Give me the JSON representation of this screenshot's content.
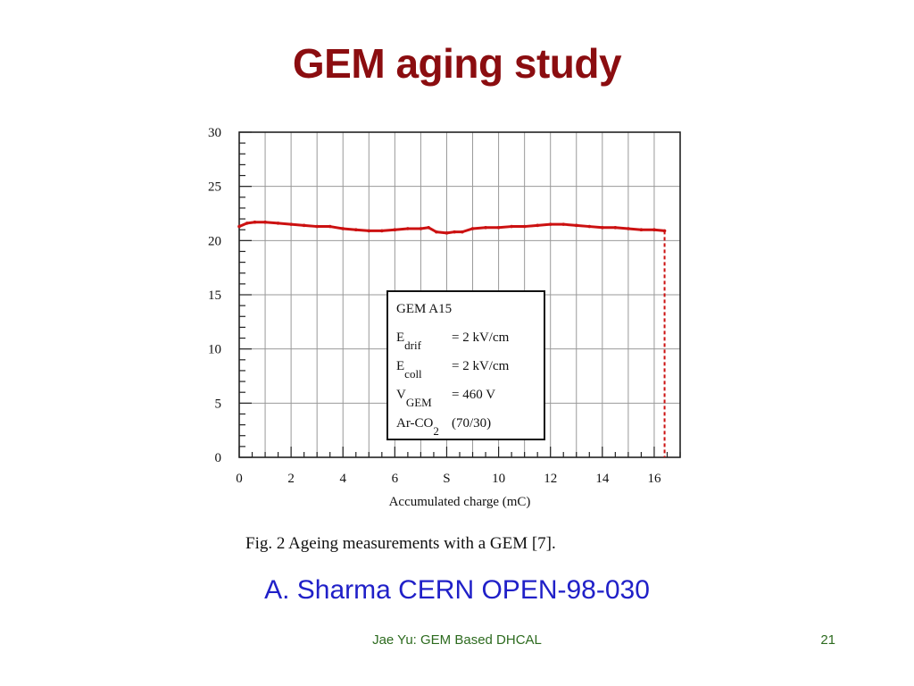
{
  "slide": {
    "title": "GEM aging study",
    "figure_caption": "Fig. 2 Ageing measurements with a GEM [7].",
    "citation": "A. Sharma CERN OPEN-98-030",
    "footer": "Jae Yu: GEM Based DHCAL",
    "page_number": "21"
  },
  "chart_data": {
    "type": "line",
    "xlabel": "Accumulated charge (mC)",
    "ylabel": "",
    "xlim": [
      0,
      17
    ],
    "ylim": [
      0,
      30
    ],
    "xticks": [
      0,
      2,
      4,
      6,
      8,
      10,
      12,
      14,
      16
    ],
    "xtick_labels": [
      "0",
      "2",
      "4",
      "6",
      "S",
      "10",
      "12",
      "14",
      "16"
    ],
    "yticks": [
      0,
      5,
      10,
      15,
      20,
      25,
      30
    ],
    "grid": true,
    "series": [
      {
        "color": "#cc1111",
        "x": [
          0,
          0.3,
          0.6,
          1,
          1.5,
          2,
          2.5,
          3,
          3.5,
          4,
          4.5,
          5,
          5.5,
          6,
          6.5,
          7,
          7.3,
          7.6,
          8,
          8.3,
          8.6,
          9,
          9.5,
          10,
          10.5,
          11,
          11.5,
          12,
          12.5,
          13,
          13.5,
          14,
          14.5,
          15,
          15.5,
          16,
          16.4
        ],
        "y": [
          21.3,
          21.6,
          21.7,
          21.7,
          21.6,
          21.5,
          21.4,
          21.3,
          21.3,
          21.1,
          21.0,
          20.9,
          20.9,
          21.0,
          21.1,
          21.1,
          21.2,
          20.8,
          20.7,
          20.8,
          20.8,
          21.1,
          21.2,
          21.2,
          21.3,
          21.3,
          21.4,
          21.5,
          21.5,
          21.4,
          21.3,
          21.2,
          21.2,
          21.1,
          21.0,
          21.0,
          20.9
        ]
      }
    ],
    "cutoff_x": 16.4,
    "legend_box": {
      "lines": [
        {
          "main": "GEM A15",
          "sub": "",
          "tail": ""
        },
        {
          "main": "E",
          "sub": "drif",
          "tail": "= 2 kV/cm"
        },
        {
          "main": "E",
          "sub": "coll",
          "tail": "= 2 kV/cm"
        },
        {
          "main": "V",
          "sub": "GEM",
          "tail": "= 460 V"
        },
        {
          "main": "Ar-CO",
          "sub": "2",
          "tail": "(70/30)"
        }
      ],
      "placement": "center-right"
    }
  }
}
